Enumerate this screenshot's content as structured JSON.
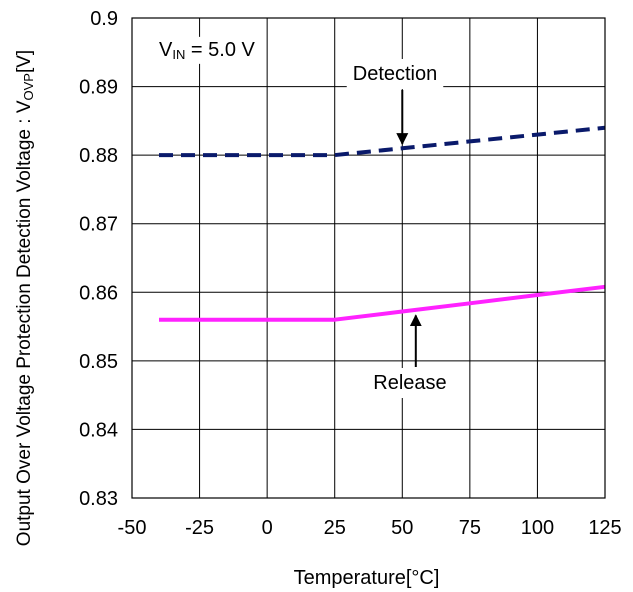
{
  "chart_data": {
    "type": "line",
    "title": "",
    "xlabel": "Temperature[°C]",
    "ylabel": {
      "main": "Output Over Voltage Protection Detection Voltage : V",
      "subscript": "OVP",
      "unit": "[V]"
    },
    "xlim": [
      -50,
      125
    ],
    "ylim": [
      0.83,
      0.9
    ],
    "x_ticks": [
      -50,
      -25,
      0,
      25,
      50,
      75,
      100,
      125
    ],
    "x_tick_labels": [
      "-50",
      "-25",
      "0",
      "25",
      "50",
      "75",
      "100",
      "125"
    ],
    "y_ticks": [
      0.83,
      0.84,
      0.85,
      0.86,
      0.87,
      0.88,
      0.89,
      0.9
    ],
    "y_tick_labels": [
      "0.83",
      "0.84",
      "0.85",
      "0.86",
      "0.87",
      "0.88",
      "0.89",
      "0.9"
    ],
    "grid": true,
    "condition": {
      "prefix": "V",
      "subscript": "IN",
      "suffix": " = 5.0 V"
    },
    "series": [
      {
        "name": "Detection",
        "color": "#0a1a6b",
        "dash": true,
        "x": [
          -40,
          -25,
          0,
          25,
          50,
          75,
          100,
          125
        ],
        "y": [
          0.88,
          0.88,
          0.88,
          0.88,
          0.881,
          0.882,
          0.883,
          0.884
        ]
      },
      {
        "name": "Release",
        "color": "#ff22ff",
        "dash": false,
        "x": [
          -40,
          -25,
          0,
          25,
          50,
          75,
          100,
          125
        ],
        "y": [
          0.856,
          0.856,
          0.856,
          0.856,
          0.8572,
          0.8584,
          0.8596,
          0.8608
        ]
      }
    ],
    "annotations": [
      {
        "text": "Detection",
        "arrow_tip": [
          50,
          0.8812
        ]
      },
      {
        "text": "Release",
        "arrow_tip": [
          55,
          0.8575
        ]
      }
    ]
  }
}
